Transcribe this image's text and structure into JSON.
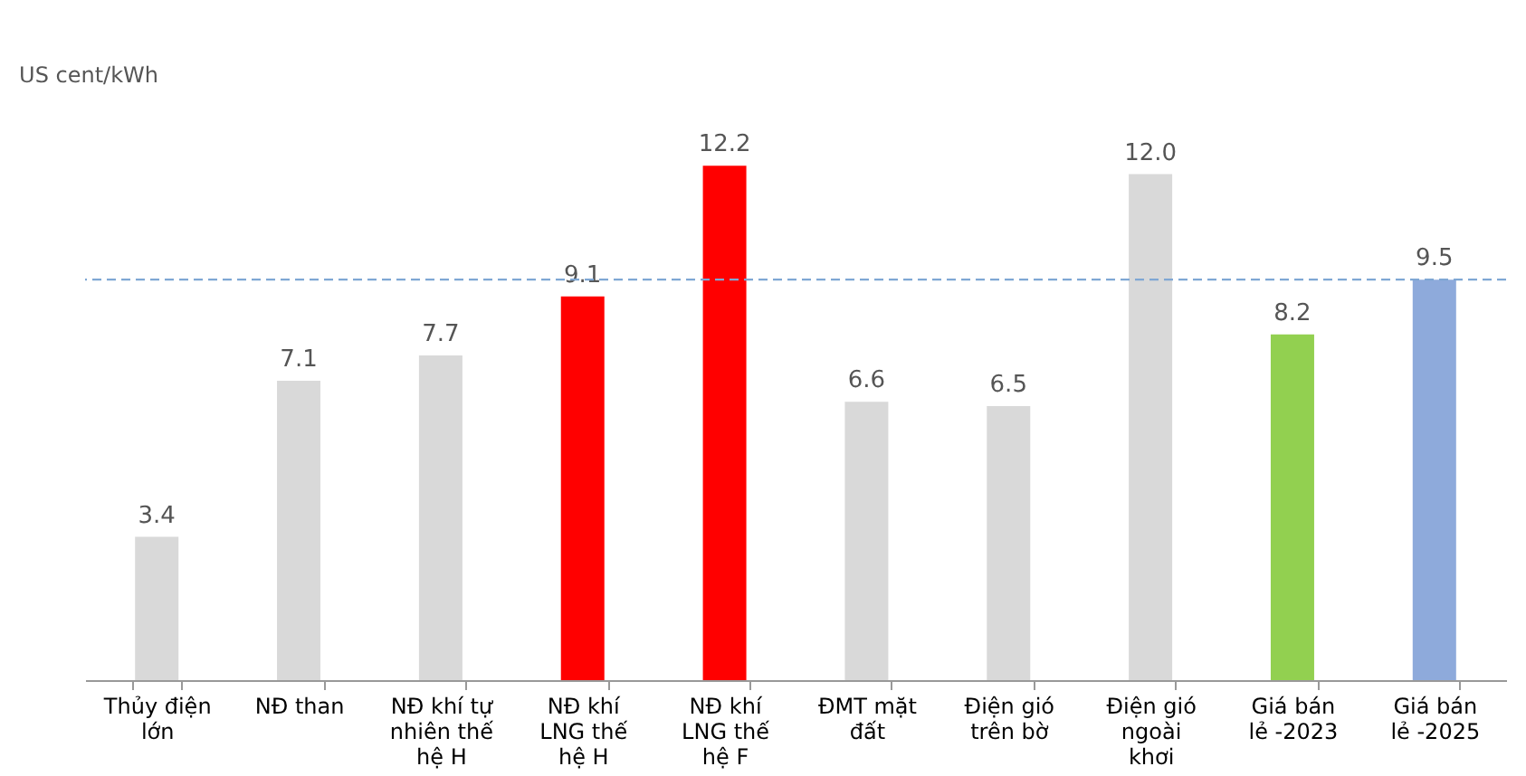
{
  "chart_data": {
    "type": "bar",
    "ylabel": "US cent/kWh",
    "categories": [
      "Thủy điện lớn",
      "NĐ than",
      "NĐ khí tự nhiên thế hệ H",
      "NĐ khí LNG thế hệ H",
      "NĐ khí LNG thế hệ F",
      "ĐMT mặt đất",
      "Điện gió trên bờ",
      "Điện gió ngoài khơi",
      "Giá bán lẻ -2023",
      "Giá bán lẻ -2025"
    ],
    "values": [
      3.4,
      7.1,
      7.7,
      9.1,
      12.2,
      6.6,
      6.5,
      12.0,
      8.2,
      9.5
    ],
    "colors": [
      "#d9d9d9",
      "#d9d9d9",
      "#d9d9d9",
      "#ff0000",
      "#ff0000",
      "#d9d9d9",
      "#d9d9d9",
      "#d9d9d9",
      "#92d050",
      "#8eaadb"
    ],
    "value_labels": [
      "3.4",
      "7.1",
      "7.7",
      "9.1",
      "12.2",
      "6.6",
      "6.5",
      "12.0",
      "8.2",
      "9.5"
    ],
    "ref_lines": [
      {
        "axis": "y",
        "value": 9.5,
        "color": "#7fa7d4",
        "line_style": "dashed"
      }
    ],
    "grid": false
  }
}
